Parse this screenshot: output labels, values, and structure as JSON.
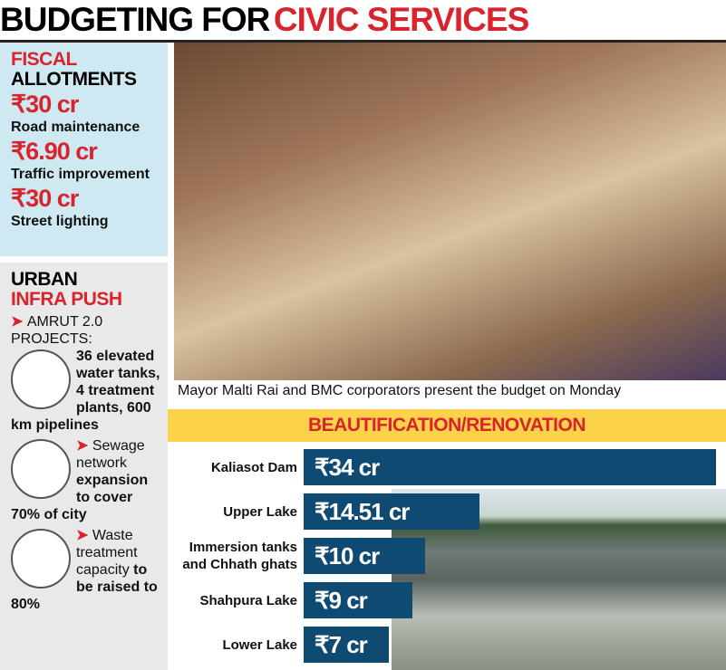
{
  "header": {
    "title_part1": "BUDGETING FOR",
    "title_part2": "CIVIC SERVICES"
  },
  "fiscal": {
    "title_line1": "FISCAL",
    "title_line2": "ALLOTMENTS",
    "items": [
      {
        "amount": "₹30 cr",
        "label": "Road maintenance"
      },
      {
        "amount": "₹6.90 cr",
        "label": "Traffic improvement"
      },
      {
        "amount": "₹30 cr",
        "label": "Street lighting"
      }
    ]
  },
  "urban": {
    "title_line1": "URBAN",
    "title_line2": "INFRA PUSH",
    "items": [
      {
        "plain": "AMRUT 2.0 PROJECTS:",
        "bold": "36 elevated water tanks, 4 treatment plants, 600 km pipelines"
      },
      {
        "plain": "Sewage network",
        "bold": "expansion to cover 70% of city"
      },
      {
        "plain": "Waste treatment capacity",
        "bold": "to be raised to 80%"
      }
    ]
  },
  "photo": {
    "caption": "Mayor Malti Rai and BMC corporators present the budget on Monday"
  },
  "chart_data": {
    "type": "bar",
    "orientation": "horizontal",
    "title": "BEAUTIFICATION/RENOVATION",
    "categories": [
      "Kaliasot Dam",
      "Upper Lake",
      "Immersion tanks and Chhath ghats",
      "Shahpura Lake",
      "Lower Lake"
    ],
    "values": [
      34,
      14.51,
      10,
      9,
      7
    ],
    "value_labels": [
      "₹34 cr",
      "₹14.51 cr",
      "₹10 cr",
      "₹9 cr",
      "₹7 cr"
    ],
    "color": "#0e4a72"
  }
}
